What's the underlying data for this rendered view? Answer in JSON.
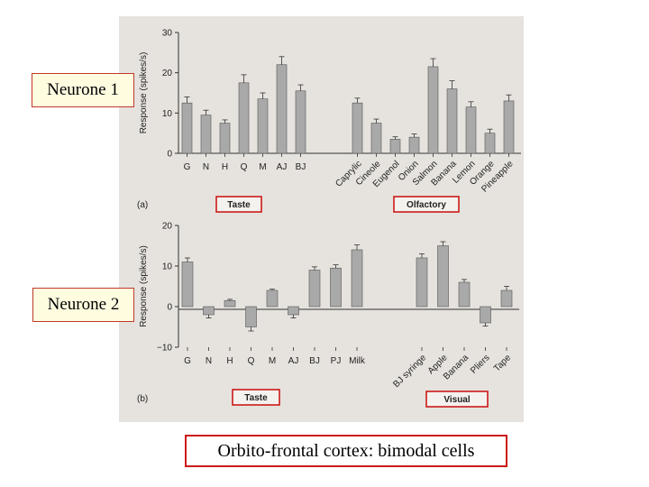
{
  "labels": {
    "neurone1": "Neurone 1",
    "neurone2": "Neurone 2",
    "caption": "Orbito-frontal cortex: bimodal cells"
  },
  "colors": {
    "bar": "#a9a9a9",
    "box_border": "#cc1a1a",
    "label_bg": "#fffce0",
    "figure_bg": "#e6e3de"
  },
  "chart_data": [
    {
      "type": "bar",
      "panel": "(a)",
      "ylabel": "Response (spikes/s)",
      "ylim": [
        0,
        30
      ],
      "yticks": [
        0,
        10,
        20,
        30
      ],
      "groups": [
        {
          "name": "Taste",
          "categories": [
            "G",
            "N",
            "H",
            "Q",
            "M",
            "AJ",
            "BJ"
          ],
          "values": [
            12.5,
            9.5,
            7.5,
            17.5,
            13.5,
            22,
            15.5
          ],
          "errors": [
            1.5,
            1.2,
            0.8,
            2.0,
            1.5,
            2.0,
            1.5
          ]
        },
        {
          "name": "Olfactory",
          "categories": [
            "Caprylic",
            "Cineole",
            "Eugenol",
            "Onion",
            "Salmon",
            "Banana",
            "Lemon",
            "Orange",
            "Pineapple"
          ],
          "values": [
            12.5,
            7.5,
            3.5,
            4,
            21.5,
            16,
            11.5,
            5,
            13
          ],
          "errors": [
            1.2,
            1.0,
            0.6,
            0.8,
            2.0,
            2.0,
            1.3,
            1.0,
            1.5
          ]
        }
      ]
    },
    {
      "type": "bar",
      "panel": "(b)",
      "ylabel": "Response (spikes/s)",
      "ylim": [
        -10,
        20
      ],
      "yticks": [
        -10,
        0,
        10,
        20
      ],
      "groups": [
        {
          "name": "Taste",
          "categories": [
            "G",
            "N",
            "H",
            "Q",
            "M",
            "AJ",
            "BJ",
            "PJ",
            "Milk"
          ],
          "values": [
            11,
            -2,
            1.5,
            -5,
            4,
            -2,
            9,
            9.5,
            14
          ],
          "errors": [
            1.0,
            0.8,
            0.3,
            1.0,
            0.3,
            0.8,
            0.8,
            0.8,
            1.2
          ]
        },
        {
          "name": "Visual",
          "categories": [
            "BJ syringe",
            "Apple",
            "Banana",
            "Pliers",
            "Tape"
          ],
          "values": [
            12,
            15,
            6,
            -4,
            4
          ],
          "errors": [
            1.0,
            1.0,
            0.7,
            0.8,
            1.0
          ]
        }
      ]
    }
  ]
}
